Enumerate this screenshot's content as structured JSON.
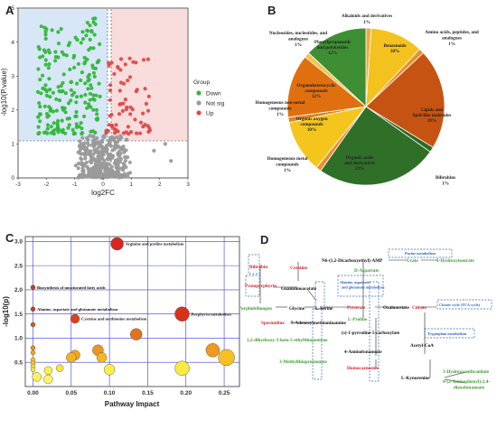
{
  "panels": {
    "a": "A",
    "b": "B",
    "c": "C",
    "d": "D"
  },
  "chart_data": [
    {
      "type": "scatter",
      "panel": "A",
      "xlabel": "log2FC",
      "ylabel": "-log10(P.value)",
      "xlim": [
        -3,
        3
      ],
      "ylim": [
        0,
        5
      ],
      "xticks": [
        "-3",
        "-2",
        "-1",
        "0",
        "1",
        "2",
        "3"
      ],
      "yticks": [
        "0",
        "1",
        "2",
        "3",
        "4",
        "5"
      ],
      "thresholds": {
        "log2fc": [
          -0.58,
          0.1
        ],
        "neglog10p": 1.3
      },
      "legend_title": "Group",
      "legend_position": "right",
      "series": [
        {
          "name": "Down",
          "color": "#33b83a"
        },
        {
          "name": "Not sig",
          "color": "#9a9a9a"
        },
        {
          "name": "Up",
          "color": "#e04848"
        }
      ]
    },
    {
      "type": "pie",
      "panel": "B",
      "slices": [
        {
          "label": "Alkaloids and derivatives",
          "pct": "1%",
          "value": 1,
          "color": "#f1a93a"
        },
        {
          "label": "Benzenoids",
          "pct": "10%",
          "value": 10,
          "color": "#f3c21e"
        },
        {
          "label": "Amino acids, peptides, and analogues",
          "pct": "1%",
          "value": 1,
          "color": "#e8902e"
        },
        {
          "label": "Lipids and lipid-like molecules",
          "pct": "19%",
          "value": 19,
          "color": "#c75312"
        },
        {
          "label": "Bilirubins",
          "pct": "1%",
          "value": 1,
          "color": "#2c6b25"
        },
        {
          "label": "Organic acids and derivatives",
          "pct": "23%",
          "value": 23,
          "color": "#2f6f28"
        },
        {
          "label": "Homogeneous metal compounds",
          "pct": "1%",
          "value": 1,
          "color": "#e8902e"
        },
        {
          "label": "Organic oxygen compounds",
          "pct": "10%",
          "value": 10,
          "color": "#f4c51c"
        },
        {
          "label": "Homogeneous non-metal compounds",
          "pct": "1%",
          "value": 1,
          "color": "#e0861a"
        },
        {
          "label": "Organoheterocyclic compounds",
          "pct": "12%",
          "value": 12,
          "color": "#e0700f"
        },
        {
          "label": "Nucleosides, nucleotides, and analogues",
          "pct": "1%",
          "value": 1,
          "color": "#f6c24a"
        },
        {
          "label": "Phenylpropanoids and polyketides",
          "pct": "12%",
          "value": 12,
          "color": "#3e8f33"
        }
      ]
    },
    {
      "type": "scatter",
      "panel": "C",
      "xlabel": "Pathway Impact",
      "ylabel": "-log10(p)",
      "xlim": [
        -0.01,
        0.27
      ],
      "ylim": [
        0,
        3.1
      ],
      "xticks": [
        "0.00",
        "0.05",
        "0.10",
        "0.15",
        "0.20",
        "0.25"
      ],
      "yticks": [
        "0.5",
        "1.0",
        "1.5",
        "2.0",
        "2.5",
        "3.0"
      ],
      "points": [
        {
          "x": 0.11,
          "y": 2.95,
          "size": 7,
          "color": "#d6261f",
          "label": "Arginine and proline metabolism"
        },
        {
          "x": 0.0,
          "y": 2.05,
          "size": 2.5,
          "color": "#c9391e",
          "label": "Biosynthesis of unsaturated fatty acids"
        },
        {
          "x": 0.0,
          "y": 1.6,
          "size": 2.5,
          "color": "#c9391e",
          "label": "Alanine, aspartate and glutamate metabolism"
        },
        {
          "x": 0.195,
          "y": 1.5,
          "size": 8,
          "color": "#d8321c",
          "label": "Porphyrin metabolism"
        },
        {
          "x": 0.055,
          "y": 1.4,
          "size": 5,
          "color": "#d8431c",
          "label": "Cysteine and methionine metabolism"
        },
        {
          "x": 0.0,
          "y": 1.28,
          "size": 2.5,
          "color": "#d55b1d",
          "label": ""
        },
        {
          "x": 0.135,
          "y": 1.08,
          "size": 6.5,
          "color": "#e0741e",
          "label": ""
        },
        {
          "x": 0.0,
          "y": 0.8,
          "size": 2.5,
          "color": "#e8901e",
          "label": ""
        },
        {
          "x": 0.085,
          "y": 0.75,
          "size": 6,
          "color": "#ec951f",
          "label": ""
        },
        {
          "x": 0.235,
          "y": 0.75,
          "size": 7.5,
          "color": "#f0981f",
          "label": ""
        },
        {
          "x": 0.0,
          "y": 0.7,
          "size": 2.5,
          "color": "#f3aa20",
          "label": ""
        },
        {
          "x": 0.055,
          "y": 0.65,
          "size": 5.5,
          "color": "#f2a521",
          "label": ""
        },
        {
          "x": 0.05,
          "y": 0.6,
          "size": 5.5,
          "color": "#f1b223",
          "label": ""
        },
        {
          "x": 0.09,
          "y": 0.6,
          "size": 5.5,
          "color": "#f4b723",
          "label": ""
        },
        {
          "x": 0.253,
          "y": 0.6,
          "size": 9,
          "color": "#f6c023",
          "label": ""
        },
        {
          "x": 0.0,
          "y": 0.55,
          "size": 2.5,
          "color": "#f6c223",
          "label": ""
        },
        {
          "x": 0.0,
          "y": 0.48,
          "size": 2.5,
          "color": "#f8d02b",
          "label": ""
        },
        {
          "x": 0.0,
          "y": 0.42,
          "size": 2.5,
          "color": "#f9dd36",
          "label": ""
        },
        {
          "x": 0.035,
          "y": 0.38,
          "size": 4,
          "color": "#fae43c",
          "label": ""
        },
        {
          "x": 0.0,
          "y": 0.35,
          "size": 2.5,
          "color": "#fae83f",
          "label": ""
        },
        {
          "x": 0.195,
          "y": 0.38,
          "size": 8,
          "color": "#fbea3f",
          "label": ""
        },
        {
          "x": 0.1,
          "y": 0.35,
          "size": 6,
          "color": "#fcee48",
          "label": ""
        },
        {
          "x": 0.02,
          "y": 0.33,
          "size": 4.5,
          "color": "#fcf04f",
          "label": ""
        },
        {
          "x": 0.005,
          "y": 0.2,
          "size": 5,
          "color": "#fdf25a",
          "label": ""
        },
        {
          "x": 0.02,
          "y": 0.15,
          "size": 5,
          "color": "#fef466",
          "label": ""
        }
      ]
    }
  ],
  "pathway_d": {
    "nodes": {
      "bilirubin": "Bilirubin",
      "creatine": "Creatine",
      "protoporphyrin": "Protoporphyrin",
      "guanidinoacetate": "Guanidinoacetate",
      "porphobilinogen": "Porphobilinogen",
      "glycine": "Glycine",
      "lserine": "L-Serine",
      "spermidine": "Spermidine",
      "sadenosyl": "5-Adenosylmethioninamine",
      "dihydroxy": "1,2-dihydroxy-3-keto-5-ethylthiopentene",
      "methylthio": "3-Methylthiopropionate",
      "n6": "N6-(1,2-Dicarboxyethyl)-AMP",
      "daspartate": "D-Aspartate",
      "urate": "Urate",
      "hydroxyisourate": "5-Hydroxyisourate",
      "pyruvate": "Pyruvate",
      "oxaloacetate": "Oxaloacetate",
      "citrate": "Citrate",
      "lproline": "L-Proline",
      "pyrroline": "(s)-1-pyrroline-5-carboxylate",
      "aminobutanoate": "4-Aminobutanoate",
      "homocarnosine": "Homocarnosine",
      "acetylcoa": "Acetyl-CoA",
      "lkynurenine": "L-Kynurenine",
      "hydroxyanthranilate": "3-Hydroxyanthranilate",
      "aminophenyl": "4-(2-Aminophenyl)-2,4-dioxobutanoate"
    },
    "boxes": {
      "purine": "Purine metabolism",
      "alanine": "Alanine, aspartate and glutamate metabolism",
      "citrate_cycle": "Citrate cycle (TCA cycle)",
      "tryptophan": "Tryptophan metabolism"
    }
  }
}
